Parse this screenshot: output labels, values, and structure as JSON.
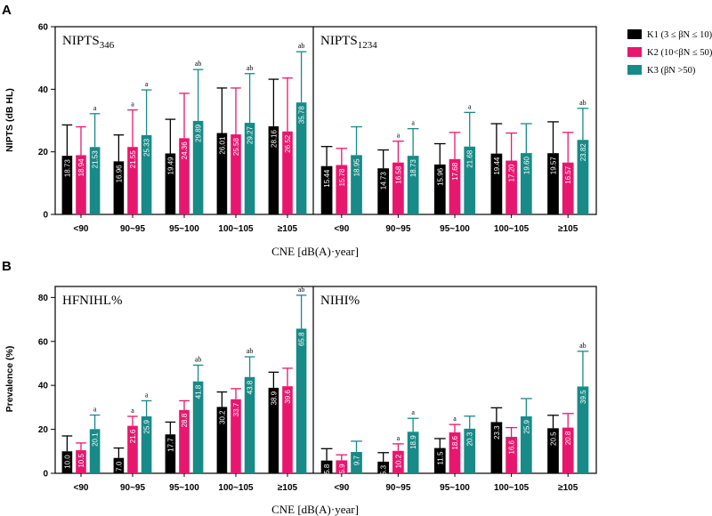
{
  "figure": {
    "legend": [
      {
        "key": "k1",
        "label": "K1 (3 ≤ βN ≤ 10)",
        "color": "#000000"
      },
      {
        "key": "k2",
        "label": "K2 (10<βN ≤ 50)",
        "color": "#e8176e"
      },
      {
        "key": "k3",
        "label": "K3 (βN >50)",
        "color": "#188a87"
      }
    ]
  },
  "chart_data": [
    {
      "type": "bar",
      "panel": "A",
      "title": "NIPTS",
      "ylabel": "NIPTS (dB HL)",
      "xlabel": "CNE [dB(A)·year]",
      "ylim": [
        0,
        60
      ],
      "yticks": [
        0,
        20,
        40,
        60
      ],
      "decimals": 2,
      "groups": [
        "<90",
        "90~95",
        "95~100",
        "100~105",
        "≥105"
      ],
      "subplots": [
        {
          "title": "NIPTS346",
          "series": [
            {
              "name": "K1",
              "values": [
                18.73,
                16.96,
                19.49,
                26.01,
                28.16
              ],
              "err": [
                28.6,
                25.4,
                30.4,
                40.4,
                43.2
              ],
              "sig": [
                "",
                "",
                "",
                "",
                ""
              ]
            },
            {
              "name": "K2",
              "values": [
                18.94,
                21.55,
                24.36,
                25.58,
                26.52
              ],
              "err": [
                28.0,
                33.4,
                38.7,
                40.4,
                43.6
              ],
              "sig": [
                "",
                "a",
                "",
                "",
                ""
              ]
            },
            {
              "name": "K3",
              "values": [
                21.53,
                25.33,
                29.89,
                29.27,
                35.78
              ],
              "err": [
                32.2,
                39.8,
                46.3,
                45.0,
                52.0
              ],
              "sig": [
                "a",
                "a",
                "ab",
                "ab",
                "ab"
              ]
            }
          ]
        },
        {
          "title": "NIPTS1234",
          "series": [
            {
              "name": "K1",
              "values": [
                15.44,
                14.73,
                15.96,
                19.44,
                19.57
              ],
              "err": [
                21.7,
                20.6,
                22.6,
                29.0,
                29.6
              ],
              "sig": [
                "",
                "",
                "",
                "",
                ""
              ]
            },
            {
              "name": "K2",
              "values": [
                15.78,
                16.58,
                17.68,
                17.2,
                16.57
              ],
              "err": [
                21.1,
                23.4,
                26.2,
                26.0,
                26.2
              ],
              "sig": [
                "",
                "a",
                "",
                "",
                ""
              ]
            },
            {
              "name": "K3",
              "values": [
                18.95,
                18.73,
                21.68,
                19.6,
                23.82
              ],
              "err": [
                28.0,
                27.4,
                32.6,
                29.0,
                33.9
              ],
              "sig": [
                "",
                "a",
                "a",
                "",
                "ab"
              ]
            }
          ]
        }
      ]
    },
    {
      "type": "bar",
      "panel": "B",
      "title": "Prevalence",
      "ylabel": "Prevalence (%)",
      "xlabel": "CNE [dB(A)·year]",
      "ylim": [
        0,
        85
      ],
      "yticks": [
        0,
        20,
        40,
        60,
        80
      ],
      "decimals": 1,
      "groups": [
        "<90",
        "90~95",
        "95~100",
        "100~105",
        "≥105"
      ],
      "subplots": [
        {
          "title": "HFNIHL%",
          "series": [
            {
              "name": "K1",
              "values": [
                10.0,
                7.0,
                17.7,
                30.2,
                38.9
              ],
              "err": [
                17.0,
                11.5,
                23.3,
                37.0,
                46.0
              ],
              "sig": [
                "",
                "",
                "",
                "",
                ""
              ]
            },
            {
              "name": "K2",
              "values": [
                10.5,
                21.6,
                28.8,
                33.7,
                39.6
              ],
              "err": [
                13.8,
                25.9,
                33.0,
                38.5,
                47.8
              ],
              "sig": [
                "",
                "a",
                "",
                "",
                ""
              ]
            },
            {
              "name": "K3",
              "values": [
                20.1,
                25.9,
                41.8,
                43.8,
                65.8
              ],
              "err": [
                26.5,
                33.0,
                49.2,
                53.0,
                81.0
              ],
              "sig": [
                "a",
                "a",
                "ab",
                "ab",
                "ab"
              ]
            }
          ]
        },
        {
          "title": "NIHI%",
          "series": [
            {
              "name": "K1",
              "values": [
                5.8,
                5.3,
                11.5,
                23.3,
                20.5
              ],
              "err": [
                11.2,
                9.4,
                15.8,
                29.8,
                26.4
              ],
              "sig": [
                "",
                "",
                "",
                "",
                ""
              ]
            },
            {
              "name": "K2",
              "values": [
                5.9,
                10.2,
                18.6,
                16.6,
                20.8
              ],
              "err": [
                8.4,
                13.4,
                22.2,
                20.8,
                27.2
              ],
              "sig": [
                "",
                "a",
                "a",
                "",
                ""
              ]
            },
            {
              "name": "K3",
              "values": [
                9.7,
                18.9,
                20.3,
                25.9,
                39.5
              ],
              "err": [
                14.6,
                25.0,
                26.0,
                34.0,
                55.5
              ],
              "sig": [
                "",
                "a",
                "",
                "",
                "ab"
              ]
            }
          ]
        }
      ]
    }
  ]
}
